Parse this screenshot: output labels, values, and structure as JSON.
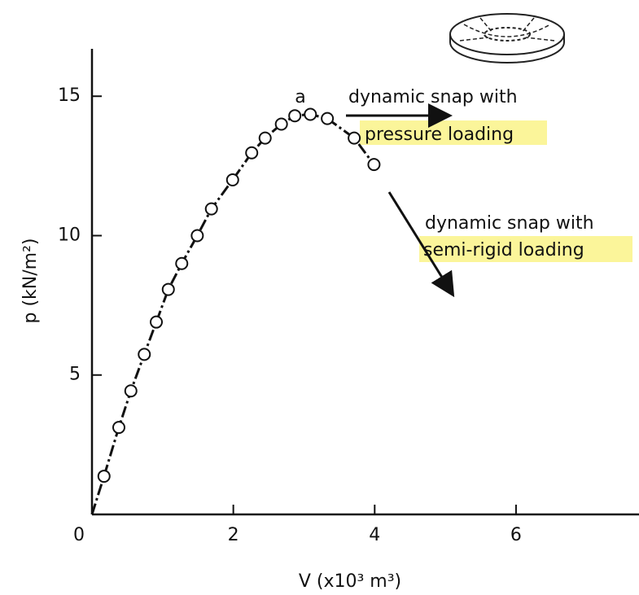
{
  "chart_data": {
    "type": "line",
    "x_label": "V (x10³ m³)",
    "y_label": "p (kN/m²)",
    "x": [
      0.17,
      0.38,
      0.55,
      0.74,
      0.91,
      1.08,
      1.27,
      1.49,
      1.69,
      1.99,
      2.26,
      2.45,
      2.68,
      2.87,
      3.09,
      3.33,
      3.71,
      3.99
    ],
    "series": [
      {
        "color": "#111111",
        "values": [
          1.37,
          3.12,
          4.43,
          5.74,
          6.9,
          8.07,
          9.0,
          10.0,
          10.96,
          12.0,
          12.97,
          13.5,
          14.0,
          14.3,
          14.35,
          14.2,
          13.5,
          12.55
        ]
      }
    ],
    "xlim": [
      0,
      7.74
    ],
    "ylim": [
      0,
      16.7
    ],
    "xticks": [
      0,
      2,
      4,
      6
    ],
    "yticks": [
      5,
      10,
      15
    ],
    "annotations": [
      "a",
      "dynamic snap with",
      "pressure loading",
      "dynamic snap with",
      "semi-rigid loading"
    ]
  }
}
